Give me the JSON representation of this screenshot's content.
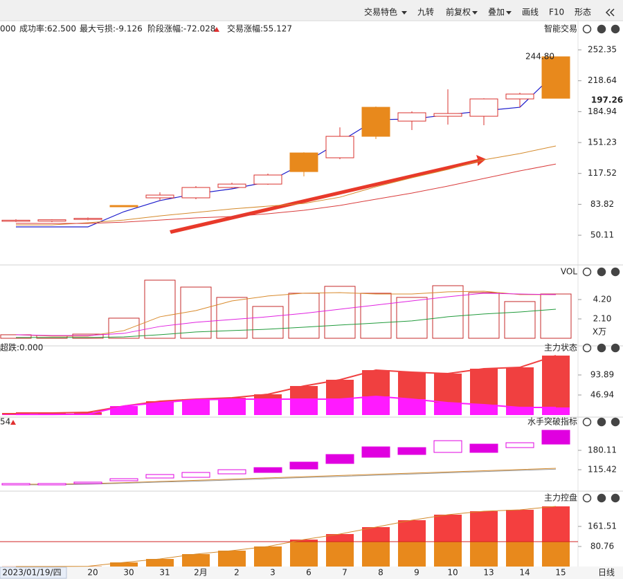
{
  "toolbar": [
    "交易特色",
    "九转",
    "前复权",
    "叠加",
    "画线",
    "F10",
    "形态"
  ],
  "chart_data": [
    {
      "type": "candlestick",
      "title": "智能交易",
      "stats": [
        {
          "text": "000",
          "color": "#333333"
        },
        {
          "text": "成功率:62.500",
          "color": "#e0891c"
        },
        {
          "text": "最大亏损:-9.126",
          "color": "#1a1acc"
        },
        {
          "text": "阶段涨幅:-72.028",
          "color": "#e03030"
        },
        {
          "text": "交易涨幅:55.127",
          "color": "#e020e0"
        }
      ],
      "open": [
        65.3,
        65.5,
        67.5,
        81.1,
        90.9,
        90.9,
        102.2,
        105.9,
        119.5,
        134.6,
        158.0,
        174.6,
        179.9,
        179.9,
        198.8,
        199.5
      ],
      "high": [
        67.5,
        67.5,
        69.5,
        82.6,
        96.9,
        103.7,
        107.4,
        117.3,
        140.6,
        167.8,
        190.5,
        185.2,
        209.3,
        199.5,
        205.6,
        244.8
      ],
      "low": [
        64.5,
        64.5,
        66.5,
        81.1,
        87.9,
        89.4,
        101.4,
        105.1,
        114.3,
        133.1,
        155.0,
        164.8,
        170.8,
        170.1,
        189.7,
        199.5
      ],
      "close": [
        66.5,
        67.0,
        68.5,
        82.6,
        93.9,
        102.2,
        105.9,
        115.8,
        139.9,
        158.0,
        189.7,
        183.7,
        182.9,
        198.8,
        204.1,
        244.8
      ],
      "filled": [
        false,
        false,
        false,
        true,
        false,
        false,
        false,
        false,
        true,
        false,
        true,
        false,
        false,
        false,
        false,
        true
      ],
      "up_color": "#d9302c",
      "fill_color": "#e8891c",
      "lines": [
        {
          "color": "#1a1acc",
          "values": [
            59.2,
            59.2,
            59.2,
            75.8,
            87.9,
            95.4,
            100.7,
            108.2,
            128.6,
            152.0,
            176.1,
            176.9,
            181.4,
            185.9,
            189.7,
            227.5
          ]
        },
        {
          "color": "#d4892a",
          "values": [
            61.4,
            61.4,
            63.7,
            66.7,
            71.2,
            75.0,
            78.8,
            81.8,
            84.8,
            91.6,
            103.0,
            112.8,
            121.8,
            132.4,
            139.2,
            147.5
          ]
        },
        {
          "color": "#d93a3a",
          "values": [
            63.0,
            63.0,
            63.0,
            64.4,
            66.7,
            69.0,
            70.5,
            73.5,
            77.3,
            82.6,
            89.4,
            96.1,
            103.7,
            112.0,
            120.3,
            127.8
          ]
        }
      ],
      "last_close_label": "244.80",
      "price_marker": 197.26,
      "ylim": [
        17.7,
        280.3
      ],
      "yticks": [
        50.11,
        83.82,
        117.52,
        151.23,
        184.94,
        218.64,
        252.35
      ]
    },
    {
      "type": "volume",
      "title": "VOL",
      "unit": "X万",
      "color": "#c62828",
      "values": [
        0.38,
        0.3,
        0.45,
        2.18,
        6.3,
        5.55,
        4.43,
        3.45,
        4.88,
        5.63,
        4.88,
        4.43,
        5.7,
        4.95,
        3.98,
        4.8
      ],
      "lines": [
        {
          "color": "#d8892a",
          "values": [
            0.38,
            0.23,
            0.23,
            0.83,
            2.33,
            3.0,
            4.05,
            4.58,
            4.88,
            4.95,
            4.8,
            4.8,
            5.03,
            5.1,
            4.73,
            4.73
          ]
        },
        {
          "color": "#e020e0",
          "values": [
            0.38,
            0.3,
            0.3,
            0.53,
            1.28,
            1.73,
            2.03,
            2.33,
            2.7,
            3.15,
            3.6,
            4.05,
            4.5,
            4.88,
            4.8,
            4.73
          ]
        },
        {
          "color": "#1f9a3a",
          "values": [
            0.08,
            0.08,
            0.08,
            0.15,
            0.38,
            0.68,
            0.83,
            0.98,
            1.2,
            1.43,
            1.65,
            1.88,
            2.33,
            2.63,
            2.85,
            3.15
          ]
        }
      ],
      "ylim": [
        -1.05,
        7.05
      ],
      "yticks": [
        {
          "value": 2.1,
          "label": "2.10"
        },
        {
          "value": 4.2,
          "label": "4.20"
        }
      ]
    },
    {
      "type": "overlay_bar",
      "title": "主力状态",
      "header": "超跌:0.000",
      "header_color": "#1f9a3a",
      "series": [
        {
          "color": "#f04040",
          "values": [
            4.9,
            4.9,
            6.5,
            21,
            32.4,
            37.2,
            40.5,
            48.6,
            68,
            82.6,
            105.2,
            100.4,
            97.1,
            108.5,
            111.7,
            139.2
          ]
        },
        {
          "color": "#ff1aff",
          "values": [
            1.5,
            1.5,
            2,
            21,
            29,
            35.6,
            37.2,
            37.2,
            37.2,
            37.2,
            43.7,
            37.2,
            29,
            24.3,
            17.8,
            17.8
          ]
        }
      ],
      "ylim": [
        0,
        142.5
      ],
      "yticks": [
        46.94,
        93.89
      ]
    },
    {
      "type": "box",
      "title": "水手突破指标",
      "header": "54",
      "color": "#e000e0",
      "open": [
        64.6,
        64.6,
        69.2,
        78.5,
        87.7,
        90.0,
        101.6,
        106.2,
        117.7,
        136.2,
        157.0,
        166.2,
        173.2,
        173.2,
        189.3,
        200.9
      ],
      "close": [
        69.2,
        69.2,
        73.9,
        85.4,
        99.3,
        106.2,
        115.4,
        122.4,
        140.8,
        166.2,
        191.7,
        189.3,
        212.4,
        200.9,
        205.5,
        247.1
      ],
      "filled": [
        false,
        false,
        false,
        false,
        false,
        false,
        false,
        true,
        true,
        true,
        true,
        true,
        false,
        true,
        false,
        true
      ],
      "lines": [
        {
          "color": "#d4892a",
          "values": [
            67,
            67,
            69,
            72,
            76,
            80,
            84,
            88,
            92,
            96,
            100,
            104,
            108,
            112,
            116,
            120
          ]
        },
        {
          "color": "#9a9a9a",
          "values": [
            65,
            65,
            67,
            70,
            74,
            77,
            81,
            85,
            89,
            93,
            97,
            101,
            105,
            109,
            113,
            117
          ]
        }
      ],
      "ylim": [
        48.4,
        263.3
      ],
      "yticks": [
        115.42,
        180.11
      ]
    },
    {
      "type": "overlay_bar",
      "title": "主力控盘",
      "series": [
        {
          "color": "#f43f3f",
          "values": [
            0.5,
            0.5,
            1,
            16.7,
            30.6,
            50.1,
            64,
            80.8,
            108.6,
            130.8,
            158.7,
            186.5,
            208.8,
            222.7,
            228.3,
            242.2
          ]
        },
        {
          "color": "#e8891c",
          "values": [
            0.5,
            0.5,
            1,
            16.7,
            30.6,
            50.1,
            64,
            80.8,
            100.2,
            100.2,
            100.2,
            100.2,
            100.2,
            100.2,
            100.2,
            100.2
          ]
        }
      ],
      "threshold": 100.2,
      "curve_color": "#d4892a",
      "categories": [
        null,
        "2023/01/19/四",
        "20",
        "30",
        "31",
        "2月",
        "2",
        "3",
        "6",
        "7",
        "8",
        "9",
        "10",
        "13",
        "14",
        "15"
      ],
      "period": "日线",
      "ylim": [
        0,
        270
      ],
      "yticks": [
        80.76,
        161.51
      ]
    }
  ]
}
